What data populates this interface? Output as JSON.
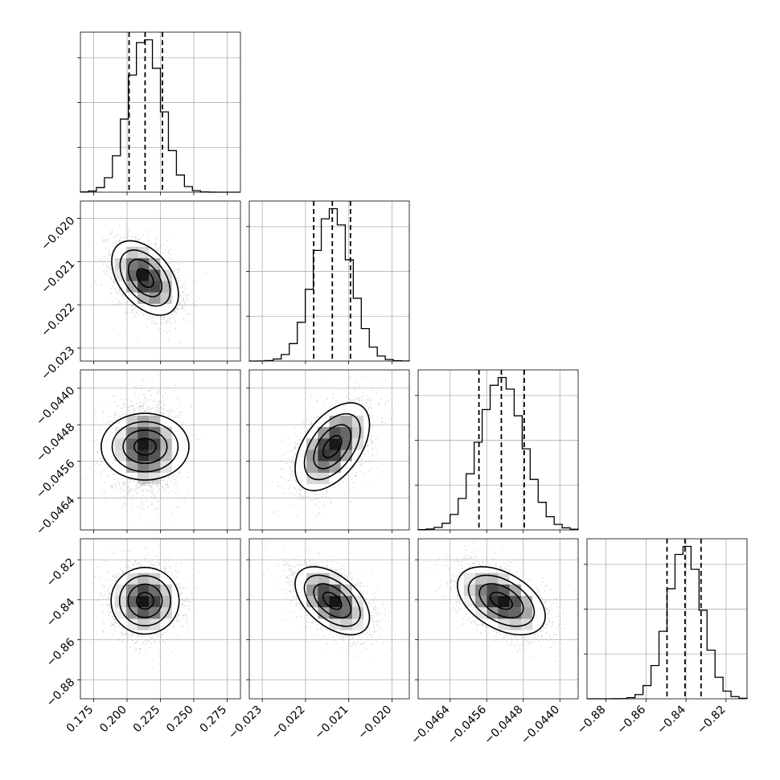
{
  "chart_data": {
    "type": "corner",
    "description_of_axes": "4-parameter corner plot: 1D marginal histograms on the diagonal, 2D density plots with contours below",
    "parameters": [
      {
        "range": [
          0.165,
          0.285
        ],
        "ticks": [
          0.175,
          0.2,
          0.225,
          0.25,
          0.275
        ],
        "tick_labels": [
          "0.175",
          "0.200",
          "0.225",
          "0.250",
          "0.275"
        ],
        "quantiles": [
          0.2015,
          0.2135,
          0.2265
        ],
        "mean": 0.2135,
        "sd": 0.0125
      },
      {
        "range": [
          -0.0233,
          -0.0196
        ],
        "ticks": [
          -0.023,
          -0.022,
          -0.021,
          -0.02
        ],
        "tick_labels": [
          "−0.023",
          "−0.022",
          "−0.021",
          "−0.020"
        ],
        "quantiles": [
          -0.02181,
          -0.02138,
          -0.02096
        ],
        "mean": -0.02138,
        "sd": 0.00043
      },
      {
        "range": [
          -0.0471,
          -0.0436
        ],
        "ticks": [
          -0.0464,
          -0.0456,
          -0.0448,
          -0.044
        ],
        "tick_labels": [
          "−0.0464",
          "−0.0456",
          "−0.0448",
          "−0.0440"
        ],
        "quantiles": [
          -0.04577,
          -0.04528,
          -0.04478
        ],
        "mean": -0.04528,
        "sd": 0.00048
      },
      {
        "range": [
          -0.8895,
          -0.8095
        ],
        "ticks": [
          -0.88,
          -0.86,
          -0.84,
          -0.82
        ],
        "tick_labels": [
          "−0.88",
          "−0.86",
          "−0.84",
          "−0.82"
        ],
        "quantiles": [
          -0.8495,
          -0.8405,
          -0.8325
        ],
        "mean": -0.8405,
        "sd": 0.0085
      }
    ],
    "correlations": {
      "1-0": -0.45,
      "2-0": 0.0,
      "2-1": 0.5,
      "3-0": 0.0,
      "3-1": -0.5,
      "3-2": -0.45
    },
    "histogram_bins": 20,
    "contour_levels": [
      0.5,
      1.0,
      1.5,
      2.0
    ],
    "grid": true,
    "colors": {
      "line": "#000000",
      "grid": "#b0b0b0",
      "points": "#bdbdbd",
      "density": "#000000"
    }
  }
}
